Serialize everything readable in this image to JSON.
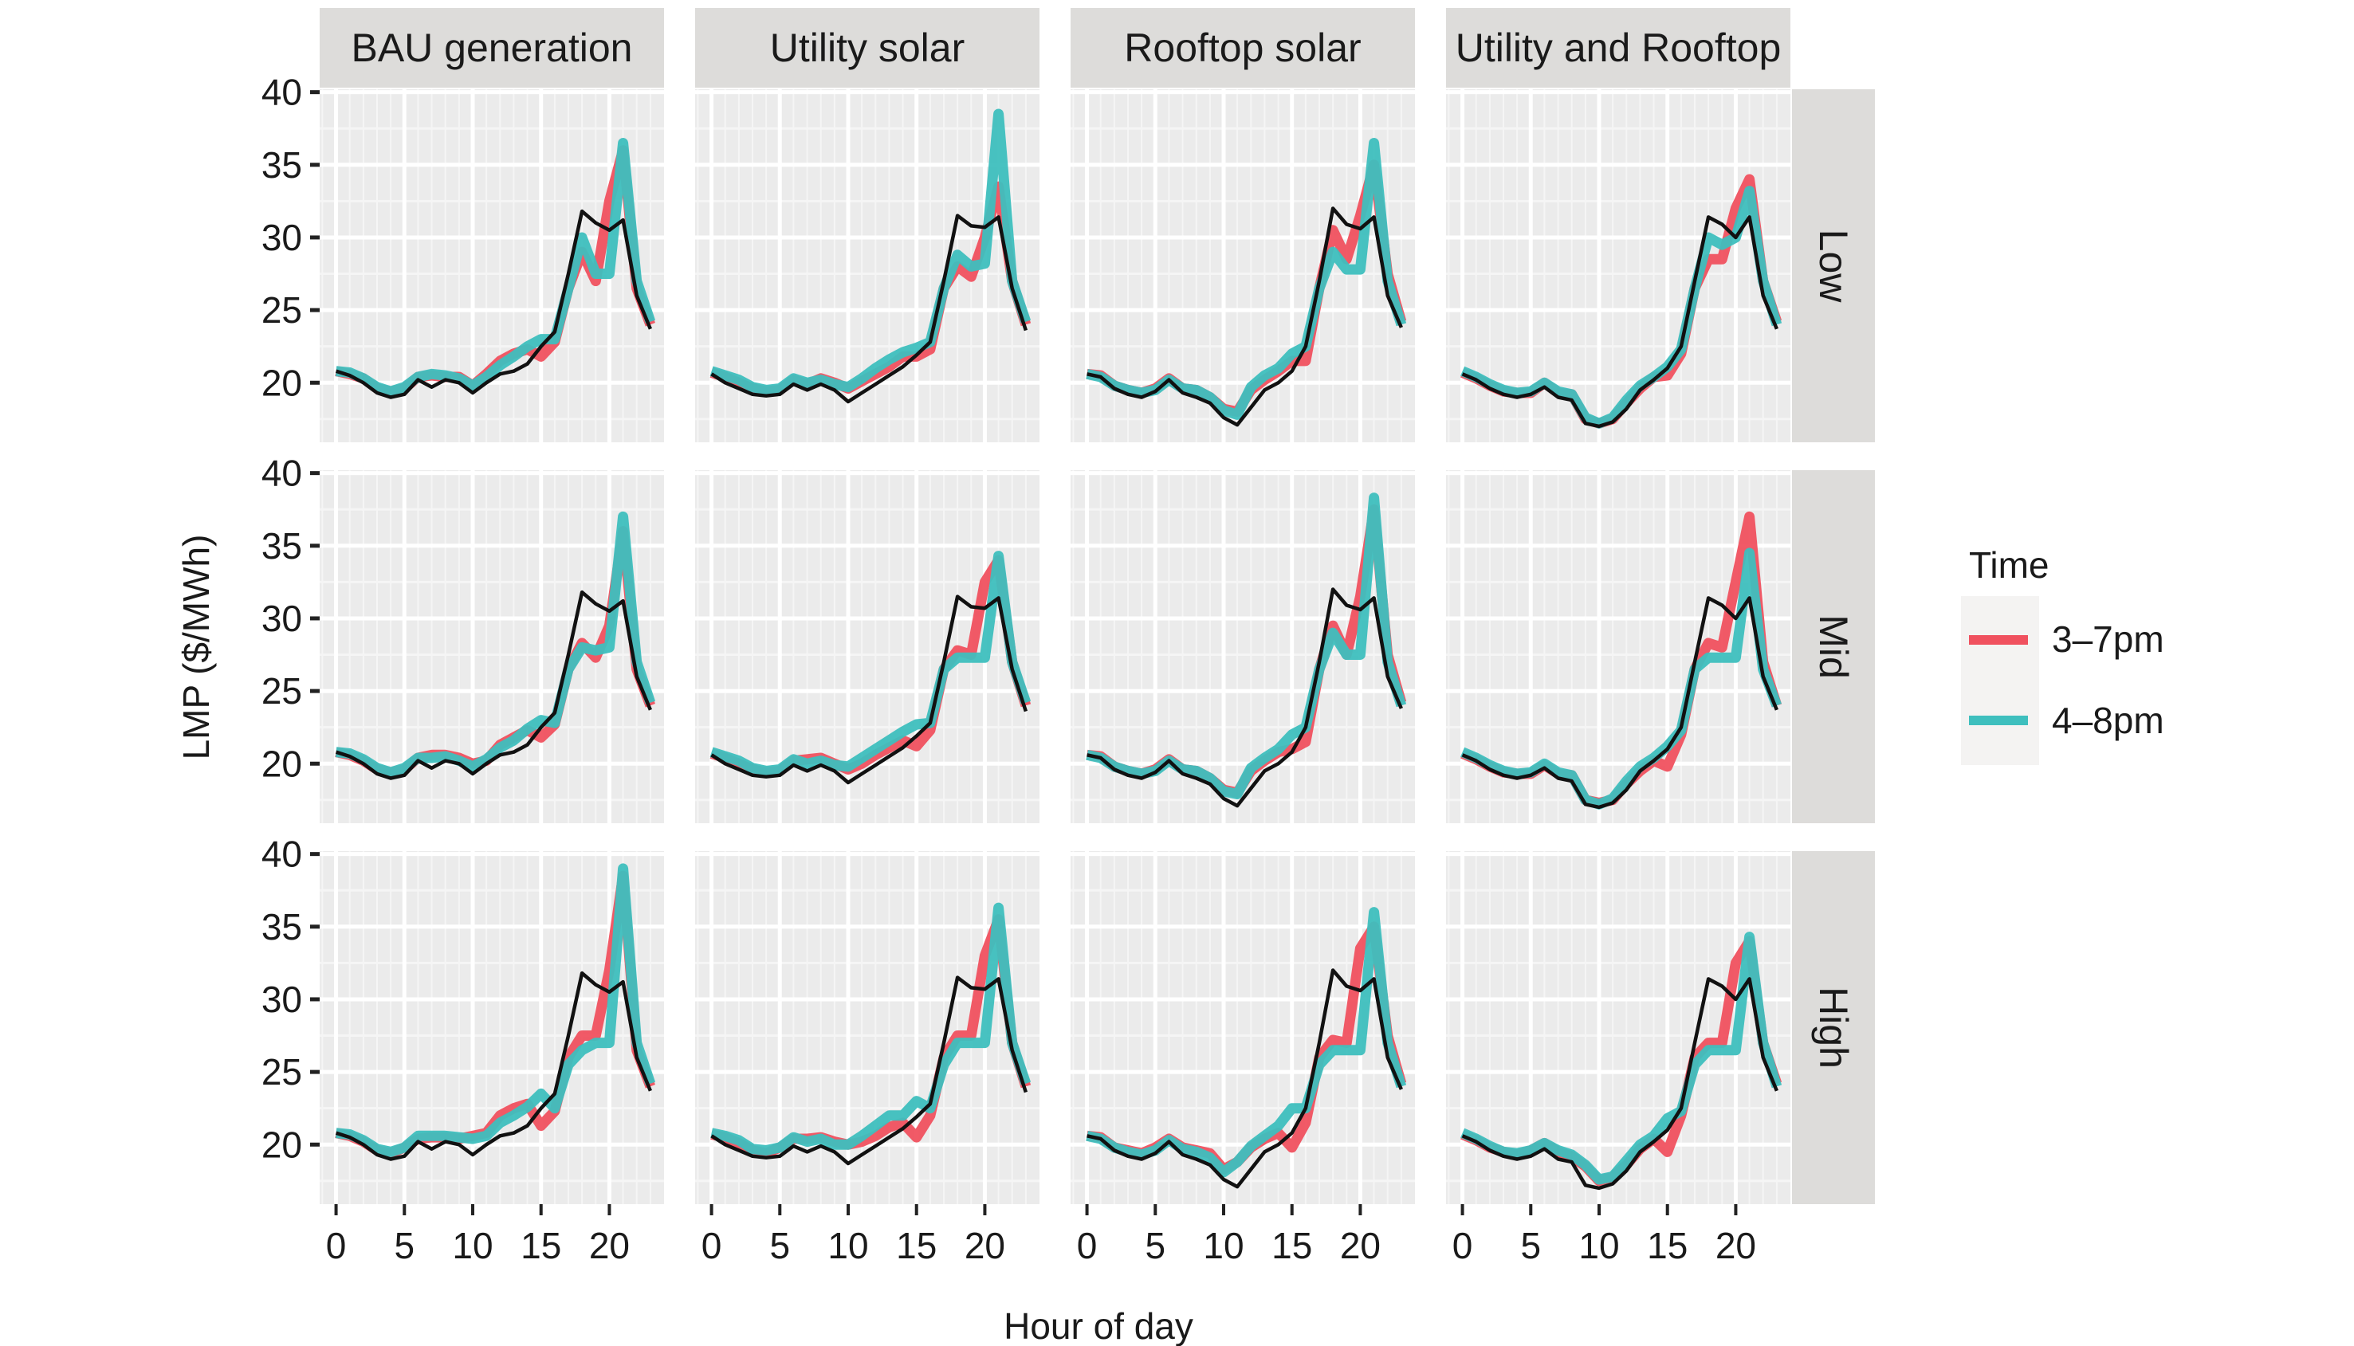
{
  "chart_data": {
    "type": "line",
    "layout": "faceted grid (rows x columns)",
    "xlabel": "Hour of day",
    "ylabel": "LMP ($/MWh)",
    "xlim": [
      -1.2,
      24.0
    ],
    "ylim": [
      15.9,
      40.2
    ],
    "x_ticks": [
      0,
      5,
      10,
      15,
      20
    ],
    "y_ticks": [
      20,
      25,
      30,
      35,
      40
    ],
    "grid": true,
    "columns": [
      "BAU generation",
      "Utility solar",
      "Rooftop solar",
      "Utility and Rooftop"
    ],
    "rows": [
      "Low",
      "Mid",
      "High"
    ],
    "x": [
      0,
      1,
      2,
      3,
      4,
      5,
      6,
      7,
      8,
      9,
      10,
      11,
      12,
      13,
      14,
      15,
      16,
      17,
      18,
      19,
      20,
      21,
      22,
      23
    ],
    "legend": {
      "title": "Time",
      "position": "right",
      "entries": [
        {
          "label": "3–7pm",
          "color": "#F0515F"
        },
        {
          "label": "4–8pm",
          "color": "#3EBFBE"
        }
      ]
    },
    "baseline_color": "#111111",
    "baselines": {
      "BAU generation": [
        20.8,
        20.5,
        20.0,
        19.3,
        19.0,
        19.2,
        20.2,
        19.7,
        20.2,
        20.0,
        19.3,
        20.0,
        20.6,
        20.8,
        21.3,
        22.5,
        23.5,
        27.5,
        31.8,
        31.0,
        30.5,
        31.2,
        26.0,
        23.7
      ],
      "Utility solar": [
        20.6,
        20.0,
        19.6,
        19.2,
        19.1,
        19.2,
        19.9,
        19.5,
        19.9,
        19.5,
        18.7,
        19.3,
        19.9,
        20.5,
        21.1,
        21.9,
        22.8,
        27.0,
        31.5,
        30.8,
        30.7,
        31.4,
        26.5,
        23.6
      ],
      "Rooftop solar": [
        20.6,
        20.4,
        19.6,
        19.2,
        19.0,
        19.4,
        20.2,
        19.3,
        19.0,
        18.6,
        17.6,
        17.1,
        18.3,
        19.5,
        20.0,
        20.8,
        22.5,
        27.0,
        32.0,
        30.9,
        30.6,
        31.4,
        26.0,
        23.8
      ],
      "Utility and Rooftop": [
        20.6,
        20.2,
        19.6,
        19.2,
        19.0,
        19.2,
        19.7,
        19.0,
        18.8,
        17.2,
        17.0,
        17.3,
        18.2,
        19.5,
        20.2,
        21.0,
        22.5,
        27.0,
        31.4,
        30.9,
        30.0,
        31.4,
        26.0,
        23.7
      ]
    },
    "panels": [
      {
        "row": "Low",
        "column": "BAU generation",
        "series": [
          {
            "name": "3–7pm",
            "values": [
              20.8,
              20.6,
              20.3,
              19.6,
              19.4,
              19.6,
              20.4,
              20.5,
              20.4,
              20.4,
              19.8,
              20.6,
              21.5,
              22.0,
              22.3,
              21.8,
              22.8,
              26.5,
              29.0,
              27.0,
              32.5,
              36.0,
              26.5,
              24.0
            ]
          },
          {
            "name": "4–8pm",
            "values": [
              20.8,
              20.7,
              20.3,
              19.7,
              19.4,
              19.7,
              20.4,
              20.6,
              20.5,
              20.3,
              19.8,
              20.4,
              21.2,
              21.8,
              22.5,
              23.0,
              23.0,
              26.5,
              30.0,
              27.5,
              27.5,
              36.5,
              27.0,
              24.2
            ]
          }
        ]
      },
      {
        "row": "Low",
        "column": "Utility solar",
        "series": [
          {
            "name": "3–7pm",
            "values": [
              20.7,
              20.4,
              20.0,
              19.6,
              19.4,
              19.5,
              20.2,
              19.9,
              20.3,
              20.0,
              19.6,
              20.1,
              20.6,
              21.1,
              21.8,
              21.8,
              22.3,
              26.5,
              28.0,
              27.3,
              30.0,
              33.5,
              27.0,
              24.0
            ]
          },
          {
            "name": "4–8pm",
            "values": [
              20.8,
              20.5,
              20.2,
              19.7,
              19.5,
              19.6,
              20.3,
              20.0,
              20.2,
              19.9,
              19.7,
              20.3,
              21.0,
              21.6,
              22.1,
              22.4,
              22.8,
              26.5,
              28.8,
              28.0,
              28.2,
              38.5,
              27.0,
              24.2
            ]
          }
        ]
      },
      {
        "row": "Low",
        "column": "Rooftop solar",
        "series": [
          {
            "name": "3–7pm",
            "values": [
              20.6,
              20.5,
              19.8,
              19.5,
              19.3,
              19.6,
              20.3,
              19.6,
              19.5,
              19.0,
              18.2,
              18.0,
              19.5,
              20.2,
              20.8,
              21.5,
              21.5,
              26.5,
              30.5,
              28.5,
              31.5,
              35.0,
              27.5,
              24.2
            ]
          },
          {
            "name": "4–8pm",
            "values": [
              20.6,
              20.4,
              19.8,
              19.5,
              19.3,
              19.5,
              20.2,
              19.6,
              19.5,
              19.0,
              18.1,
              17.8,
              19.7,
              20.5,
              21.0,
              22.0,
              22.5,
              26.5,
              29.0,
              27.8,
              27.8,
              36.5,
              27.0,
              24.0
            ]
          }
        ]
      },
      {
        "row": "Low",
        "column": "Utility and Rooftop",
        "series": [
          {
            "name": "3–7pm",
            "values": [
              20.7,
              20.3,
              19.8,
              19.4,
              19.3,
              19.3,
              20.0,
              19.3,
              19.2,
              17.5,
              17.2,
              17.5,
              18.6,
              19.6,
              20.4,
              20.5,
              22.0,
              26.5,
              28.5,
              28.5,
              32.0,
              34.0,
              27.0,
              24.2
            ]
          },
          {
            "name": "4–8pm",
            "values": [
              20.8,
              20.4,
              19.9,
              19.5,
              19.3,
              19.4,
              20.0,
              19.4,
              19.2,
              17.6,
              17.2,
              17.6,
              18.8,
              19.8,
              20.4,
              21.1,
              22.3,
              26.5,
              30.0,
              29.5,
              30.0,
              33.2,
              27.0,
              24.0
            ]
          }
        ]
      },
      {
        "row": "Mid",
        "column": "BAU generation",
        "series": [
          {
            "name": "3–7pm",
            "values": [
              20.8,
              20.6,
              20.2,
              19.6,
              19.4,
              19.6,
              20.4,
              20.6,
              20.6,
              20.4,
              20.0,
              20.2,
              21.3,
              21.8,
              22.3,
              21.8,
              22.7,
              26.5,
              28.3,
              27.3,
              29.5,
              36.0,
              26.5,
              24.0
            ]
          },
          {
            "name": "4–8pm",
            "values": [
              20.8,
              20.7,
              20.3,
              19.7,
              19.4,
              19.7,
              20.4,
              20.4,
              20.5,
              20.2,
              19.8,
              20.3,
              21.1,
              21.6,
              22.4,
              23.0,
              22.8,
              26.5,
              28.0,
              27.8,
              28.0,
              37.0,
              27.0,
              24.2
            ]
          }
        ]
      },
      {
        "row": "Mid",
        "column": "Utility solar",
        "series": [
          {
            "name": "3–7pm",
            "values": [
              20.7,
              20.4,
              20.0,
              19.6,
              19.4,
              19.5,
              20.2,
              20.3,
              20.4,
              20.0,
              19.6,
              20.0,
              20.6,
              21.1,
              21.6,
              21.2,
              22.3,
              26.5,
              27.8,
              27.5,
              32.5,
              34.0,
              27.0,
              24.0
            ]
          },
          {
            "name": "4–8pm",
            "values": [
              20.8,
              20.5,
              20.2,
              19.7,
              19.5,
              19.6,
              20.3,
              20.0,
              20.2,
              19.9,
              19.8,
              20.4,
              21.0,
              21.6,
              22.2,
              22.7,
              22.8,
              26.5,
              27.3,
              27.3,
              27.3,
              34.3,
              27.0,
              24.2
            ]
          }
        ]
      },
      {
        "row": "Mid",
        "column": "Rooftop solar",
        "series": [
          {
            "name": "3–7pm",
            "values": [
              20.6,
              20.5,
              19.8,
              19.5,
              19.3,
              19.6,
              20.3,
              19.6,
              19.5,
              19.0,
              18.2,
              18.0,
              19.5,
              20.2,
              20.8,
              21.0,
              21.5,
              26.5,
              29.5,
              27.5,
              31.5,
              37.5,
              27.5,
              24.2
            ]
          },
          {
            "name": "4–8pm",
            "values": [
              20.6,
              20.4,
              19.8,
              19.5,
              19.3,
              19.5,
              20.2,
              19.6,
              19.5,
              19.0,
              18.1,
              17.9,
              19.7,
              20.4,
              21.0,
              22.0,
              22.5,
              26.5,
              29.0,
              27.5,
              27.5,
              38.3,
              27.0,
              24.0
            ]
          }
        ]
      },
      {
        "row": "Mid",
        "column": "Utility and Rooftop",
        "series": [
          {
            "name": "3–7pm",
            "values": [
              20.7,
              20.3,
              19.8,
              19.4,
              19.3,
              19.3,
              19.9,
              19.3,
              19.2,
              17.5,
              17.3,
              17.5,
              18.6,
              19.5,
              20.2,
              19.8,
              22.0,
              26.5,
              28.3,
              28.0,
              32.5,
              37.0,
              27.0,
              24.0
            ]
          },
          {
            "name": "4–8pm",
            "values": [
              20.8,
              20.4,
              19.9,
              19.5,
              19.3,
              19.4,
              20.0,
              19.4,
              19.2,
              17.5,
              17.2,
              17.6,
              18.8,
              19.8,
              20.4,
              21.2,
              22.3,
              26.5,
              27.3,
              27.3,
              27.3,
              34.5,
              26.5,
              24.0
            ]
          }
        ]
      },
      {
        "row": "High",
        "column": "BAU generation",
        "series": [
          {
            "name": "3–7pm",
            "values": [
              20.8,
              20.6,
              20.2,
              19.6,
              19.4,
              19.8,
              20.4,
              20.5,
              20.5,
              20.4,
              20.6,
              20.8,
              22.0,
              22.5,
              22.8,
              21.3,
              22.3,
              26.0,
              27.5,
              27.5,
              32.0,
              38.5,
              26.5,
              24.0
            ]
          },
          {
            "name": "4–8pm",
            "values": [
              20.8,
              20.7,
              20.3,
              19.7,
              19.5,
              19.8,
              20.6,
              20.6,
              20.6,
              20.5,
              20.4,
              20.6,
              21.5,
              22.0,
              22.6,
              23.5,
              22.5,
              25.5,
              26.5,
              27.0,
              27.0,
              39.0,
              27.0,
              24.2
            ]
          }
        ]
      },
      {
        "row": "High",
        "column": "Utility solar",
        "series": [
          {
            "name": "3–7pm",
            "values": [
              20.7,
              20.5,
              20.1,
              19.6,
              19.4,
              19.8,
              20.4,
              20.4,
              20.5,
              20.2,
              20.0,
              20.2,
              20.6,
              21.2,
              21.5,
              20.5,
              22.0,
              26.0,
              27.5,
              27.5,
              33.0,
              35.5,
              27.0,
              24.0
            ]
          },
          {
            "name": "4–8pm",
            "values": [
              20.8,
              20.6,
              20.3,
              19.7,
              19.6,
              19.8,
              20.5,
              20.2,
              20.4,
              20.0,
              20.0,
              20.6,
              21.3,
              22.0,
              22.0,
              23.0,
              22.5,
              25.5,
              27.0,
              27.0,
              27.0,
              36.3,
              27.0,
              24.2
            ]
          }
        ]
      },
      {
        "row": "High",
        "column": "Rooftop solar",
        "series": [
          {
            "name": "3–7pm",
            "values": [
              20.6,
              20.5,
              19.8,
              19.6,
              19.4,
              19.8,
              20.4,
              19.8,
              19.6,
              19.4,
              18.3,
              18.8,
              19.8,
              20.4,
              20.8,
              19.8,
              21.5,
              26.0,
              27.2,
              27.0,
              33.5,
              35.0,
              27.5,
              24.2
            ]
          },
          {
            "name": "4–8pm",
            "values": [
              20.6,
              20.4,
              19.8,
              19.5,
              19.3,
              19.6,
              20.3,
              19.7,
              19.5,
              19.1,
              18.1,
              18.8,
              19.9,
              20.6,
              21.3,
              22.5,
              22.5,
              25.5,
              26.5,
              26.5,
              26.5,
              36.0,
              27.0,
              24.0
            ]
          }
        ]
      },
      {
        "row": "High",
        "column": "Utility and Rooftop",
        "series": [
          {
            "name": "3–7pm",
            "values": [
              20.7,
              20.3,
              19.8,
              19.5,
              19.3,
              19.6,
              20.1,
              19.5,
              19.2,
              18.5,
              17.5,
              17.8,
              18.6,
              19.7,
              20.4,
              19.5,
              22.0,
              26.0,
              27.0,
              27.0,
              32.5,
              34.0,
              27.0,
              24.2
            ]
          },
          {
            "name": "4–8pm",
            "values": [
              20.8,
              20.4,
              19.9,
              19.5,
              19.4,
              19.6,
              20.1,
              19.6,
              19.3,
              18.6,
              17.6,
              17.8,
              18.9,
              20.0,
              20.6,
              21.8,
              22.3,
              25.5,
              26.5,
              26.5,
              26.5,
              34.3,
              27.0,
              24.0
            ]
          }
        ]
      }
    ]
  }
}
